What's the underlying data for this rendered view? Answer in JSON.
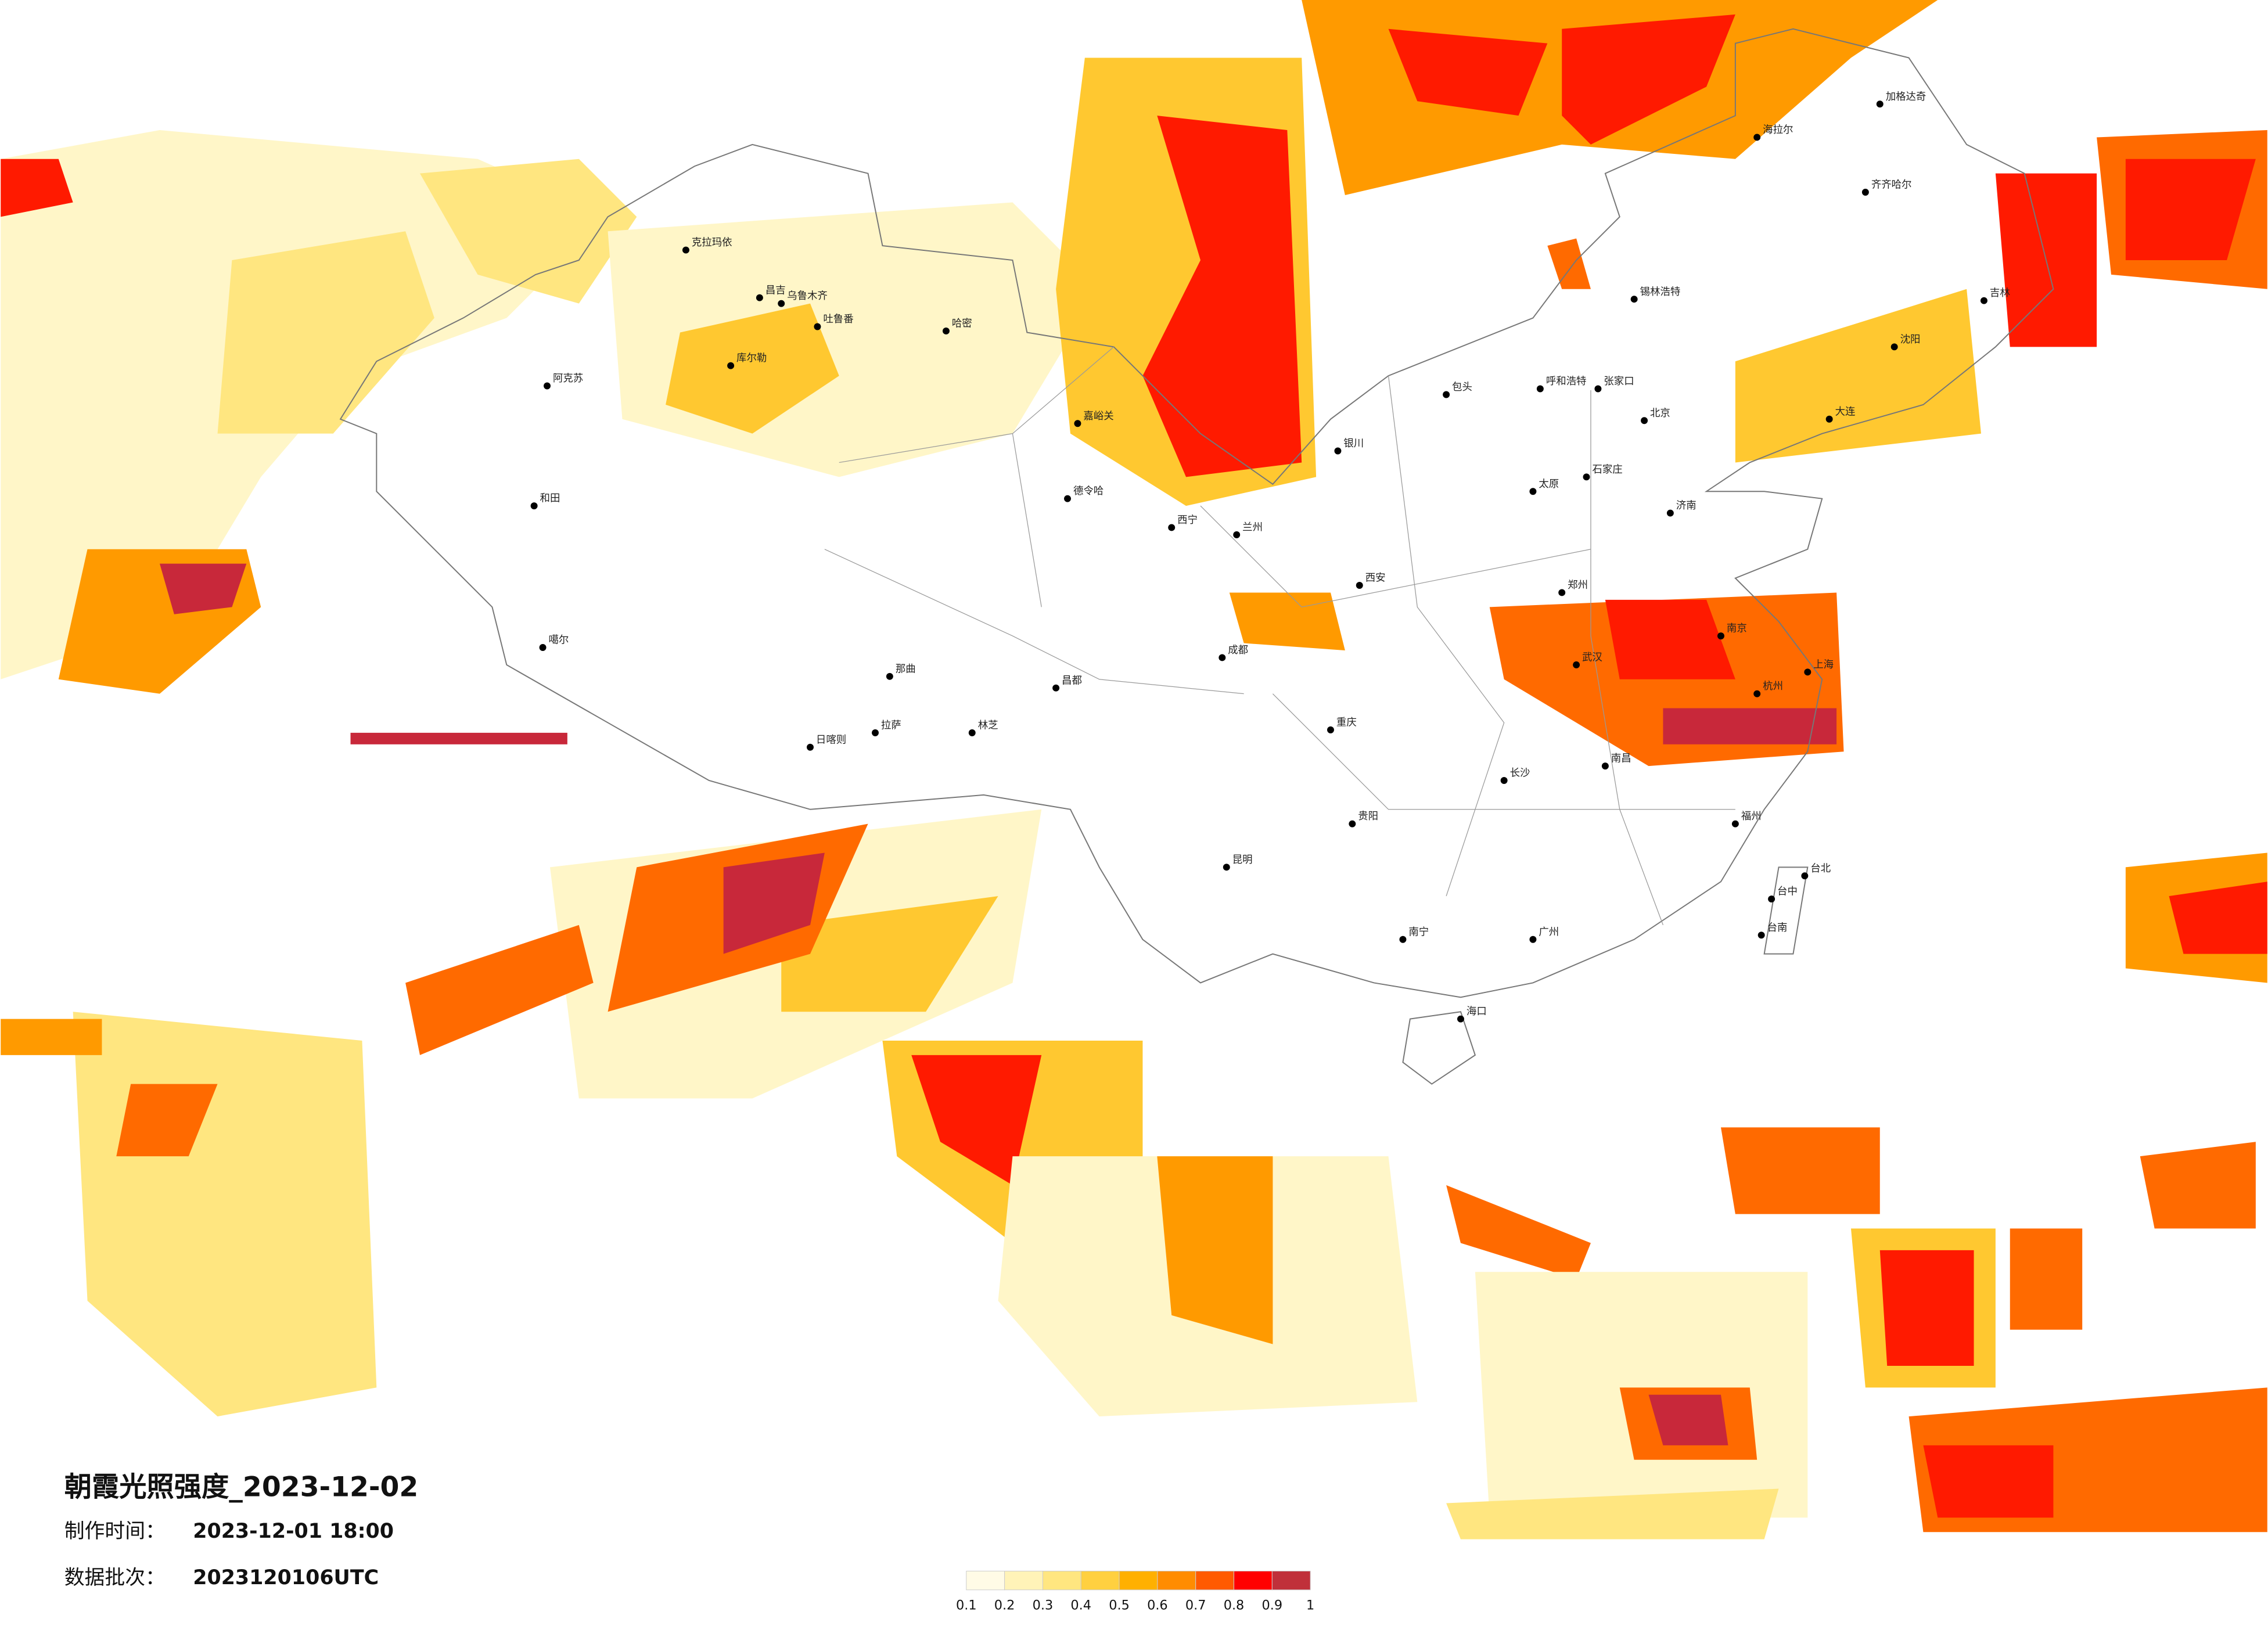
{
  "header": {
    "title": "朝霞光照强度_2023-12-02"
  },
  "info": {
    "rows": [
      {
        "label": "制作时间：",
        "value": "2023-12-01 18:00"
      },
      {
        "label": "数据批次：",
        "value": "2023120106UTC"
      }
    ]
  },
  "legend": {
    "colors": [
      "#fffbe6",
      "#fff3b8",
      "#ffe680",
      "#ffd040",
      "#ffb000",
      "#ff8c00",
      "#ff5a00",
      "#ff0000",
      "#c0303a"
    ],
    "ticks": [
      0.1,
      0.2,
      0.3,
      0.4,
      0.5,
      0.6,
      0.7,
      0.8,
      0.9,
      1
    ]
  },
  "cities": [
    {
      "name": "克拉玛依"
    },
    {
      "name": "昌吉"
    },
    {
      "name": "乌鲁木齐"
    },
    {
      "name": "吐鲁番"
    },
    {
      "name": "哈密"
    },
    {
      "name": "库尔勒"
    },
    {
      "name": "阿克苏"
    },
    {
      "name": "和田"
    },
    {
      "name": "噶尔"
    },
    {
      "name": "日喀则"
    },
    {
      "name": "拉萨"
    },
    {
      "name": "林芝"
    },
    {
      "name": "那曲"
    },
    {
      "name": "昌都"
    },
    {
      "name": "德令哈"
    },
    {
      "name": "嘉峪关"
    },
    {
      "name": "西宁"
    },
    {
      "name": "兰州"
    },
    {
      "name": "银川"
    },
    {
      "name": "呼和浩特"
    },
    {
      "name": "包头"
    },
    {
      "name": "张家口"
    },
    {
      "name": "北京"
    },
    {
      "name": "石家庄"
    },
    {
      "name": "太原"
    },
    {
      "name": "济南"
    },
    {
      "name": "郑州"
    },
    {
      "name": "西安"
    },
    {
      "name": "成都"
    },
    {
      "name": "重庆"
    },
    {
      "name": "武汉"
    },
    {
      "name": "南京"
    },
    {
      "name": "上海"
    },
    {
      "name": "杭州"
    },
    {
      "name": "长沙"
    },
    {
      "name": "南昌"
    },
    {
      "name": "福州"
    },
    {
      "name": "贵阳"
    },
    {
      "name": "昆明"
    },
    {
      "name": "南宁"
    },
    {
      "name": "广州"
    },
    {
      "name": "海口"
    },
    {
      "name": "台北"
    },
    {
      "name": "台中"
    },
    {
      "name": "台南"
    },
    {
      "name": "齐齐哈尔"
    },
    {
      "name": "海拉尔"
    },
    {
      "name": "加格达奇"
    },
    {
      "name": "吉林"
    },
    {
      "name": "锡林浩特"
    },
    {
      "name": "沈阳"
    },
    {
      "name": "大连"
    }
  ]
}
